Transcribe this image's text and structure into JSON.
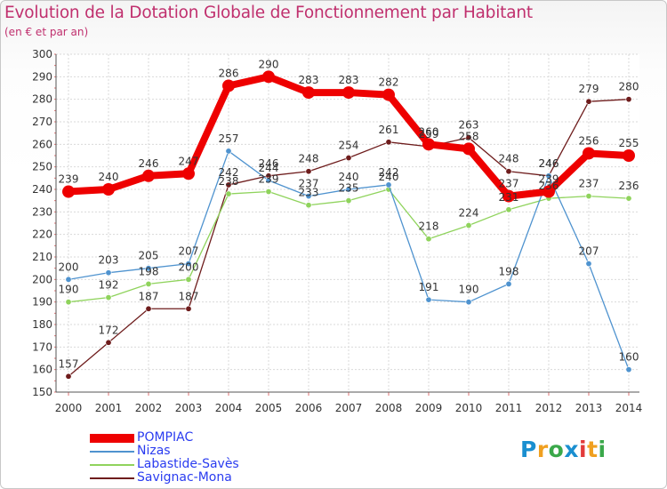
{
  "header": {
    "title": "Evolution de la Dotation Globale de Fonctionnement par Habitant",
    "subtitle": "(en € et par an)"
  },
  "logo": {
    "text": "Proxiti",
    "colors": [
      "#1a8fd0",
      "#f0a020",
      "#3aa84a",
      "#1a8fd0",
      "#e23a3a",
      "#f0a020",
      "#3aa84a"
    ]
  },
  "chart_data": {
    "type": "line",
    "x": [
      "2000",
      "2001",
      "2002",
      "2003",
      "2004",
      "2005",
      "2006",
      "2007",
      "2008",
      "2009",
      "2010",
      "2011",
      "2012",
      "2013",
      "2014"
    ],
    "ylim": [
      150,
      300
    ],
    "yticks": [
      150,
      160,
      170,
      180,
      190,
      200,
      210,
      220,
      230,
      240,
      250,
      260,
      270,
      280,
      290,
      300
    ],
    "grid": true,
    "legend_position": "bottom-left",
    "series": [
      {
        "name": "POMPIAC",
        "color": "#ee0000",
        "values": [
          239,
          240,
          246,
          247,
          286,
          290,
          283,
          283,
          282,
          260,
          258,
          237,
          239,
          256,
          255
        ]
      },
      {
        "name": "Nizas",
        "color": "#4f93cf",
        "values": [
          200,
          203,
          205,
          207,
          257,
          244,
          237,
          240,
          242,
          191,
          190,
          198,
          246,
          207,
          160
        ]
      },
      {
        "name": "Labastide-Savès",
        "color": "#8fd35c",
        "values": [
          190,
          192,
          198,
          200,
          238,
          239,
          233,
          235,
          240,
          218,
          224,
          231,
          236,
          237,
          236
        ]
      },
      {
        "name": "Savignac-Mona",
        "color": "#6e1c1c",
        "values": [
          157,
          172,
          187,
          187,
          242,
          246,
          248,
          254,
          261,
          259,
          263,
          248,
          246,
          279,
          280
        ]
      }
    ],
    "labels": [
      [
        "239",
        "240",
        "246",
        "247",
        "286",
        "290",
        "283",
        "283",
        "282",
        "260",
        "258",
        "237",
        "239",
        "256",
        "255"
      ],
      [
        "200",
        "203",
        "205",
        "207",
        "257",
        "244",
        "237",
        "240",
        "242",
        "191",
        "190",
        "198",
        "246",
        "207",
        "160"
      ],
      [
        "190",
        "192",
        "198",
        "200",
        "238",
        "239",
        "233",
        "235",
        "240",
        "218",
        "224",
        "231",
        "236",
        "237",
        "236"
      ],
      [
        "157",
        "172",
        "187",
        "187",
        "242",
        "246",
        "248",
        "254",
        "261",
        "259",
        "263",
        "248",
        "246",
        "279",
        "280"
      ]
    ]
  }
}
